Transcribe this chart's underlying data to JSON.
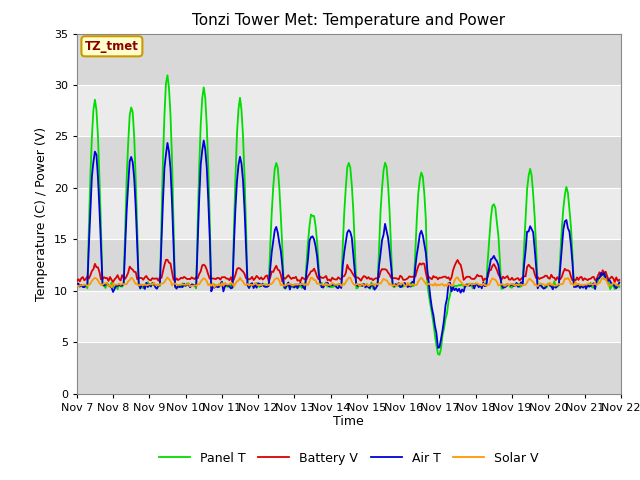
{
  "title": "Tonzi Tower Met: Temperature and Power",
  "xlabel": "Time",
  "ylabel": "Temperature (C) / Power (V)",
  "ylim": [
    0,
    35
  ],
  "annotation": "TZ_tmet",
  "legend": [
    "Panel T",
    "Battery V",
    "Air T",
    "Solar V"
  ],
  "colors": {
    "Panel T": "#00DD00",
    "Battery V": "#DD0000",
    "Air T": "#0000DD",
    "Solar V": "#FF9900"
  },
  "x_ticks": [
    0,
    24,
    48,
    72,
    96,
    120,
    144,
    168,
    192,
    216,
    240,
    264,
    288,
    312,
    336,
    360
  ],
  "x_tick_labels": [
    "Nov 7",
    "Nov 8",
    "Nov 9",
    "Nov 10",
    "Nov 11",
    "Nov 12",
    "Nov 13",
    "Nov 14",
    "Nov 15",
    "Nov 16",
    "Nov 17",
    "Nov 18",
    "Nov 19",
    "Nov 20",
    "Nov 21",
    "Nov 22"
  ],
  "bg_light": "#EBEBEB",
  "bg_dark": "#D8D8D8",
  "fig_background": "#FFFFFF",
  "grid_color": "#FFFFFF"
}
